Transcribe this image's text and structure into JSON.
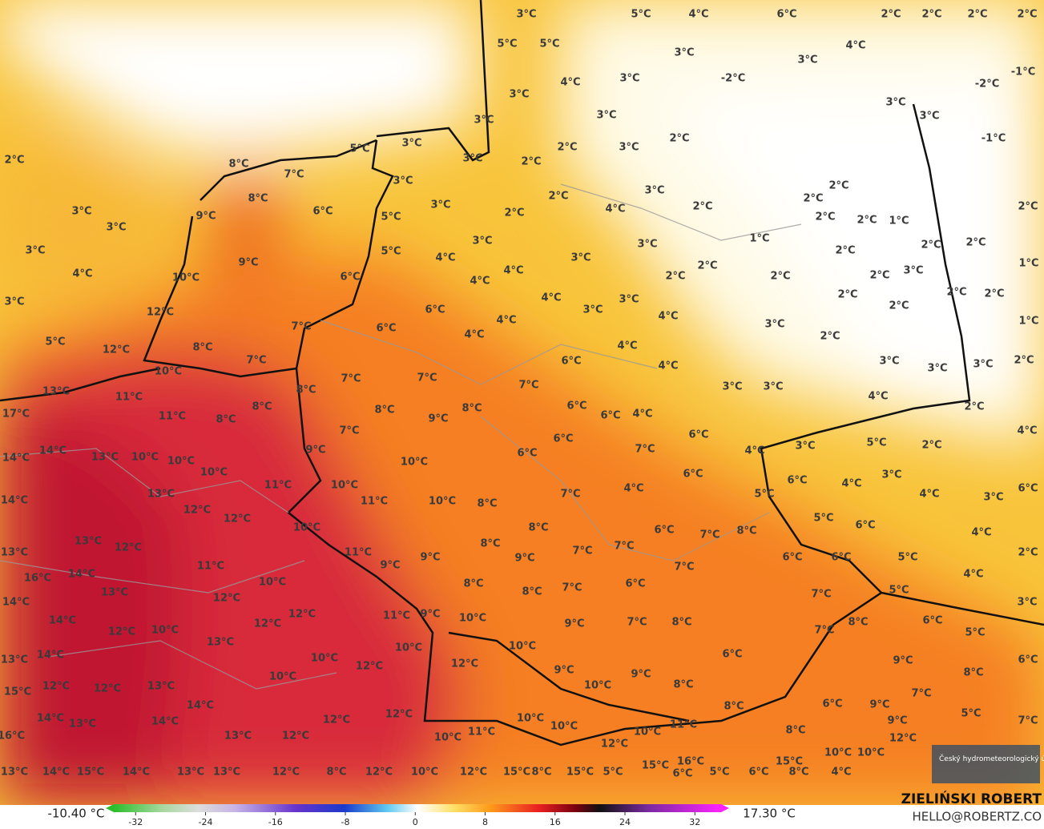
{
  "map": {
    "labels": [
      "3°C",
      "5°C",
      "4°C",
      "6°C",
      "2°C",
      "2°C",
      "2°C",
      "2°C",
      "5°C",
      "5°C",
      "3°C",
      "3°C",
      "4°C",
      "4°C",
      "3°C",
      "-2°C",
      "-2°C",
      "-1°C",
      "3°C",
      "3°C",
      "3°C",
      "3°C",
      "3°C",
      "-1°C",
      "5°C",
      "3°C",
      "2°C",
      "3°C",
      "2°C",
      "3°C",
      "2°C",
      "2°C",
      "8°C",
      "7°C",
      "3°C",
      "3°C",
      "2°C",
      "2°C",
      "2°C",
      "3°C",
      "9°C",
      "8°C",
      "6°C",
      "5°C",
      "3°C",
      "2°C",
      "4°C",
      "2°C",
      "2°C",
      "2°C",
      "1°C",
      "2°C",
      "3°C",
      "3°C",
      "9°C",
      "5°C",
      "3°C",
      "4°C",
      "3°C",
      "1°C",
      "3°C",
      "2°C",
      "2°C",
      "2°C",
      "2°C",
      "1°C",
      "3°C",
      "4°C",
      "10°C",
      "6°C",
      "4°C",
      "4°C",
      "2°C",
      "2°C",
      "2°C",
      "2°C",
      "2°C",
      "2°C",
      "3°C",
      "12°C",
      "6°C",
      "4°C",
      "3°C",
      "3°C",
      "4°C",
      "2°C",
      "1°C",
      "5°C",
      "12°C",
      "8°C",
      "7°C",
      "6°C",
      "4°C",
      "4°C",
      "3°C",
      "2°C",
      "3°C",
      "3°C",
      "3°C",
      "2°C",
      "10°C",
      "7°C",
      "7°C",
      "7°C",
      "7°C",
      "6°C",
      "4°C",
      "4°C",
      "3°C",
      "3°C",
      "13°C",
      "11°C",
      "8°C",
      "8°C",
      "8°C",
      "9°C",
      "8°C",
      "6°C",
      "6°C",
      "4°C",
      "4°C",
      "2°C",
      "4°C",
      "17°C",
      "11°C",
      "8°C",
      "7°C",
      "6°C",
      "6°C",
      "7°C",
      "5°C",
      "3°C",
      "2°C",
      "14°C",
      "14°C",
      "13°C",
      "10°C",
      "10°C",
      "9°C",
      "10°C",
      "6°C",
      "4°C",
      "10°C",
      "11°C",
      "10°C",
      "13°C",
      "11°C",
      "10°C",
      "8°C",
      "7°C",
      "4°C",
      "6°C",
      "6°C",
      "4°C",
      "3°C",
      "5°C",
      "4°C",
      "3°C",
      "6°C",
      "14°C",
      "12°C",
      "12°C",
      "10°C",
      "8°C",
      "6°C",
      "7°C",
      "8°C",
      "5°C",
      "6°C",
      "4°C",
      "13°C",
      "13°C",
      "12°C",
      "11°C",
      "8°C",
      "9°C",
      "9°C",
      "7°C",
      "7°C",
      "6°C",
      "6°C",
      "5°C",
      "2°C",
      "16°C",
      "14°C",
      "11°C",
      "9°C",
      "7°C",
      "4°C",
      "14°C",
      "13°C",
      "10°C",
      "12°C",
      "8°C",
      "8°C",
      "7°C",
      "6°C",
      "7°C",
      "5°C",
      "3°C",
      "14°C",
      "12°C",
      "12°C",
      "11°C",
      "9°C",
      "10°C",
      "9°C",
      "7°C",
      "8°C",
      "6°C",
      "7°C",
      "8°C",
      "12°C",
      "10°C",
      "13°C",
      "10°C",
      "10°C",
      "6°C",
      "9°C",
      "5°C",
      "8°C",
      "6°C",
      "13°C",
      "14°C",
      "10°C",
      "12°C",
      "12°C",
      "9°C",
      "9°C",
      "10°C",
      "10°C",
      "8°C",
      "7°C",
      "15°C",
      "12°C",
      "12°C",
      "13°C",
      "14°C",
      "12°C",
      "12°C",
      "8°C",
      "6°C",
      "9°C",
      "5°C",
      "7°C",
      "14°C",
      "13°C",
      "14°C",
      "13°C",
      "12°C",
      "10°C",
      "10°C",
      "10°C",
      "11°C",
      "9°C",
      "12°C",
      "16°C",
      "10°C",
      "11°C",
      "12°C",
      "8°C",
      "10°C",
      "10°C",
      "13°C",
      "14°C",
      "15°C",
      "14°C",
      "13°C",
      "13°C",
      "12°C",
      "8°C",
      "12°C",
      "10°C",
      "12°C",
      "15°C",
      "8°C",
      "15°C",
      "5°C",
      "15°C",
      "16°C",
      "6°C",
      "5°C",
      "6°C",
      "15°C",
      "8°C",
      "4°C"
    ]
  },
  "legend": {
    "min": "-10.40 °C",
    "max": "17.30 °C",
    "xlim": [
      -34.5,
      35
    ],
    "ticks": [
      -32,
      -24,
      -16,
      -8,
      0,
      8,
      16,
      24,
      32
    ]
  },
  "credit": {
    "author": "ZIELIŃSKI ROBERT",
    "email": "HELLO@ROBERTZ.CO",
    "logo": "Český hydrometeorologický ústav"
  }
}
